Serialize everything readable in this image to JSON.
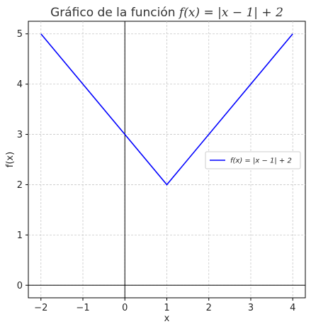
{
  "chart_data": {
    "type": "line",
    "title_prefix": "Gráfico de la función ",
    "title_formula": "f(x) = |x − 1| + 2",
    "xlabel": "x",
    "ylabel": "f(x)",
    "xlim": [
      -2.3,
      4.3
    ],
    "ylim": [
      -0.25,
      5.25
    ],
    "xticks": [
      -2,
      -1,
      0,
      1,
      2,
      3,
      4
    ],
    "xtick_labels": [
      "−2",
      "−1",
      "0",
      "1",
      "2",
      "3",
      "4"
    ],
    "yticks": [
      0,
      1,
      2,
      3,
      4,
      5
    ],
    "ytick_labels": [
      "0",
      "1",
      "2",
      "3",
      "4",
      "5"
    ],
    "grid": true,
    "grid_style": "dashed",
    "legend_position": "right",
    "series": [
      {
        "name": "f(x) = |x − 1| + 2",
        "color": "#0000ff",
        "x": [
          -2,
          1,
          4
        ],
        "y": [
          5,
          2,
          5
        ]
      }
    ],
    "axis_lines": {
      "x0": true,
      "y0": true,
      "color": "#000000"
    }
  }
}
